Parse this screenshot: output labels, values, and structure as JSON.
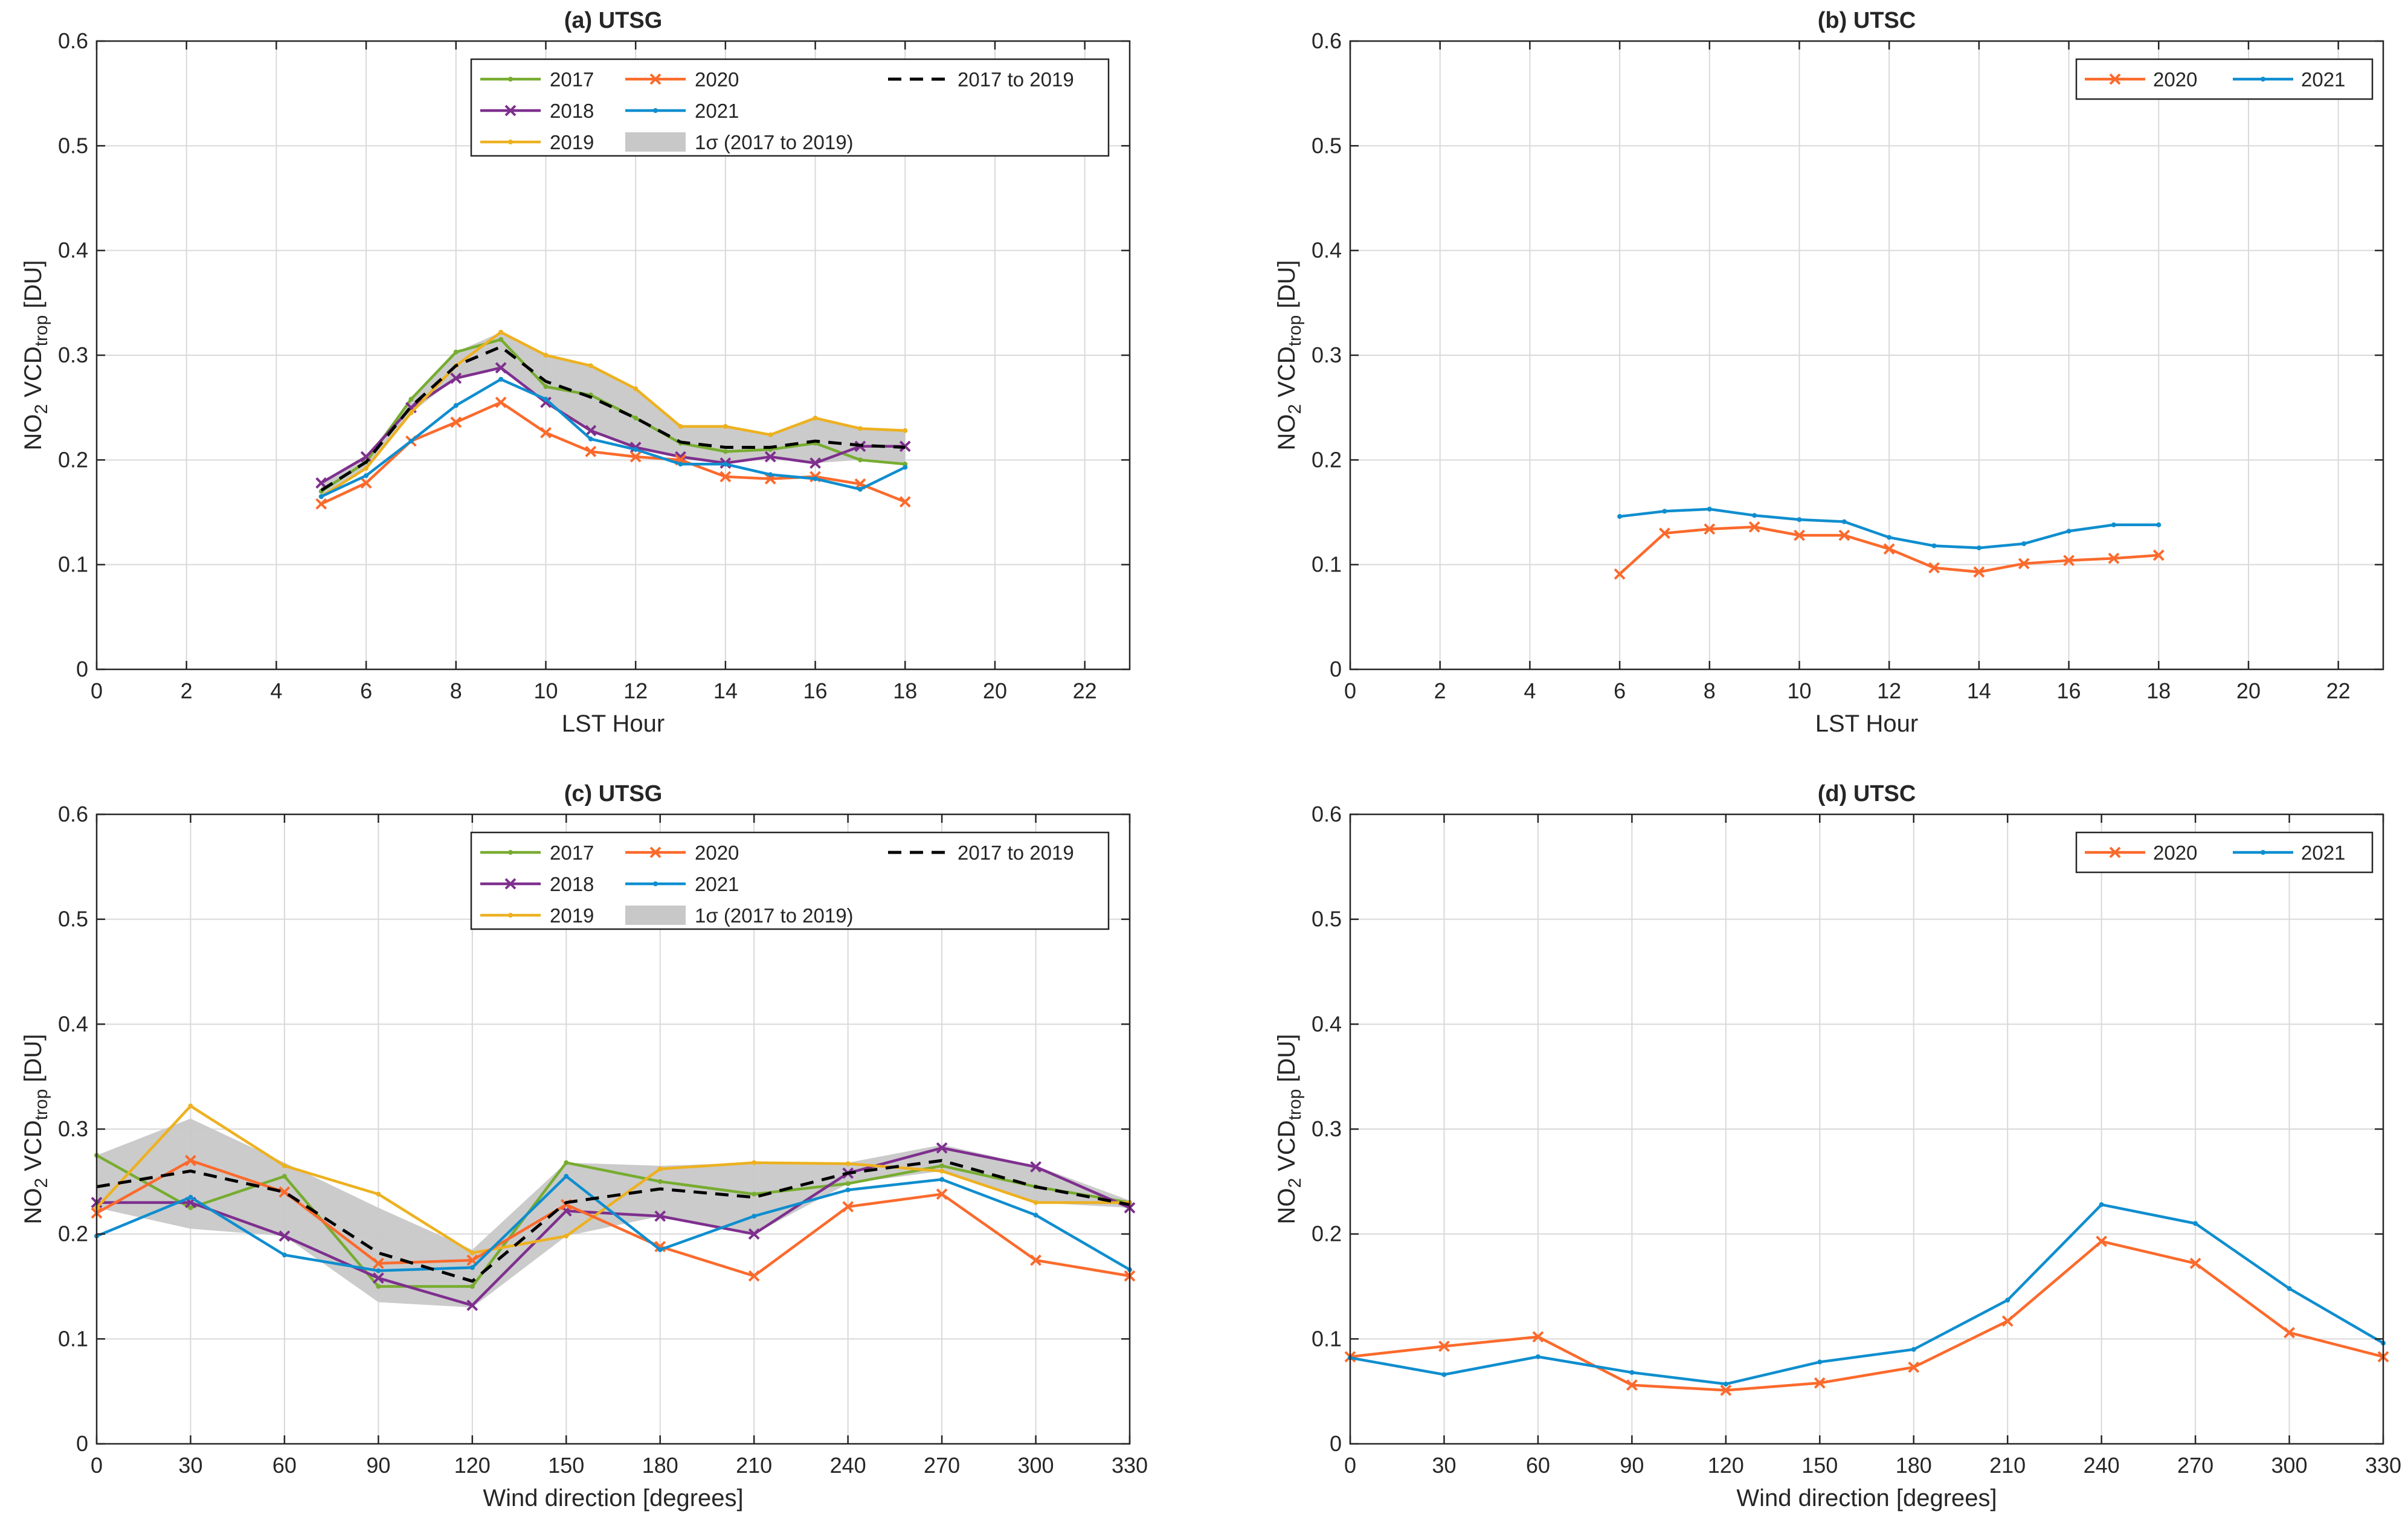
{
  "figure": {
    "ylabel_main": "NO",
    "ylabel_sub2": "2",
    "ylabel_mid": " VCD",
    "ylabel_sub_trop": "trop",
    "ylabel_unit": " [DU]"
  },
  "colors": {
    "2017": "#77ac30",
    "2018": "#7e2f8e",
    "2019": "#edb120",
    "2020": "#fb6a2c",
    "2021": "#0f8ecf",
    "mean": "#000000",
    "band": "#c8c8c8",
    "grid": "#d9d9d9"
  },
  "chart_data": [
    {
      "id": "a",
      "type": "line",
      "title": "(a) UTSG",
      "xlabel": "LST Hour",
      "ylabel": "NO2 VCDtrop [DU]",
      "xlim": [
        0,
        23
      ],
      "ylim": [
        0,
        0.6
      ],
      "xticks": [
        0,
        2,
        4,
        6,
        8,
        10,
        12,
        14,
        16,
        18,
        20,
        22
      ],
      "yticks": [
        0,
        0.1,
        0.2,
        0.3,
        0.4,
        0.5,
        0.6
      ],
      "ytick_labels": [
        "0",
        "0.1",
        "0.2",
        "0.3",
        "0.4",
        "0.5",
        "0.6"
      ],
      "grid": true,
      "legend_position": "top-right",
      "x": [
        5,
        6,
        7,
        8,
        9,
        10,
        11,
        12,
        13,
        14,
        15,
        16,
        17,
        18
      ],
      "series": [
        {
          "name": "2017",
          "marker": "dot",
          "values": [
            0.17,
            0.198,
            0.258,
            0.303,
            0.315,
            0.27,
            0.262,
            0.24,
            0.216,
            0.208,
            0.21,
            0.216,
            0.2,
            0.196
          ]
        },
        {
          "name": "2018",
          "marker": "x",
          "values": [
            0.178,
            0.203,
            0.25,
            0.278,
            0.288,
            0.255,
            0.228,
            0.212,
            0.203,
            0.197,
            0.203,
            0.197,
            0.213,
            0.213
          ]
        },
        {
          "name": "2019",
          "marker": "dot",
          "values": [
            0.165,
            0.192,
            0.245,
            0.29,
            0.322,
            0.3,
            0.29,
            0.268,
            0.232,
            0.232,
            0.224,
            0.24,
            0.23,
            0.228
          ]
        },
        {
          "name": "2020",
          "marker": "x",
          "values": [
            0.158,
            0.178,
            0.218,
            0.236,
            0.255,
            0.226,
            0.208,
            0.203,
            0.2,
            0.184,
            0.182,
            0.184,
            0.177,
            0.16
          ]
        },
        {
          "name": "2021",
          "marker": "dot",
          "values": [
            0.165,
            0.185,
            0.218,
            0.252,
            0.277,
            0.258,
            0.22,
            0.21,
            0.196,
            0.196,
            0.186,
            0.182,
            0.172,
            0.193
          ]
        },
        {
          "name": "2017 to 2019",
          "marker": "none",
          "dashed": true,
          "values": [
            0.171,
            0.198,
            0.251,
            0.29,
            0.308,
            0.275,
            0.26,
            0.24,
            0.217,
            0.212,
            0.212,
            0.218,
            0.214,
            0.212
          ]
        }
      ],
      "band": {
        "name": "1σ (2017 to 2019)",
        "lower": [
          0.165,
          0.192,
          0.245,
          0.278,
          0.288,
          0.255,
          0.228,
          0.212,
          0.203,
          0.197,
          0.203,
          0.197,
          0.2,
          0.196
        ],
        "upper": [
          0.178,
          0.203,
          0.258,
          0.303,
          0.322,
          0.3,
          0.29,
          0.268,
          0.232,
          0.232,
          0.224,
          0.24,
          0.23,
          0.228
        ]
      },
      "legend": [
        "2017",
        "2020",
        "2017 to 2019",
        "2018",
        "2021",
        "2019",
        "1σ (2017 to 2019)"
      ]
    },
    {
      "id": "b",
      "type": "line",
      "title": "(b) UTSC",
      "xlabel": "LST Hour",
      "ylabel": "NO2 VCDtrop [DU]",
      "xlim": [
        0,
        23
      ],
      "ylim": [
        0,
        0.6
      ],
      "xticks": [
        0,
        2,
        4,
        6,
        8,
        10,
        12,
        14,
        16,
        18,
        20,
        22
      ],
      "yticks": [
        0,
        0.1,
        0.2,
        0.3,
        0.4,
        0.5,
        0.6
      ],
      "ytick_labels": [
        "0",
        "0.1",
        "0.2",
        "0.3",
        "0.4",
        "0.5",
        "0.6"
      ],
      "grid": true,
      "legend_position": "top-right",
      "x": [
        6,
        7,
        8,
        9,
        10,
        11,
        12,
        13,
        14,
        15,
        16,
        17,
        18
      ],
      "series": [
        {
          "name": "2020",
          "marker": "x",
          "values": [
            0.091,
            0.13,
            0.134,
            0.136,
            0.128,
            0.128,
            0.115,
            0.097,
            0.093,
            0.101,
            0.104,
            0.106,
            0.109
          ]
        },
        {
          "name": "2021",
          "marker": "dot",
          "values": [
            0.146,
            0.151,
            0.153,
            0.147,
            0.143,
            0.141,
            0.126,
            0.118,
            0.116,
            0.12,
            0.132,
            0.138,
            0.138
          ]
        }
      ],
      "legend": [
        "2020",
        "2021"
      ]
    },
    {
      "id": "c",
      "type": "line",
      "title": "(c) UTSG",
      "xlabel": "Wind direction [degrees]",
      "ylabel": "NO2 VCDtrop [DU]",
      "xlim": [
        0,
        330
      ],
      "ylim": [
        0,
        0.6
      ],
      "xticks": [
        0,
        30,
        60,
        90,
        120,
        150,
        180,
        210,
        240,
        270,
        300,
        330
      ],
      "yticks": [
        0,
        0.1,
        0.2,
        0.3,
        0.4,
        0.5,
        0.6
      ],
      "ytick_labels": [
        "0",
        "0.1",
        "0.2",
        "0.3",
        "0.4",
        "0.5",
        "0.6"
      ],
      "grid": true,
      "legend_position": "top-right",
      "x": [
        0,
        30,
        60,
        90,
        120,
        150,
        180,
        210,
        240,
        270,
        300,
        330
      ],
      "series": [
        {
          "name": "2017",
          "marker": "dot",
          "values": [
            0.275,
            0.225,
            0.255,
            0.15,
            0.15,
            0.268,
            0.25,
            0.238,
            0.248,
            0.265,
            0.245,
            0.23
          ]
        },
        {
          "name": "2018",
          "marker": "x",
          "values": [
            0.23,
            0.23,
            0.198,
            0.158,
            0.132,
            0.222,
            0.217,
            0.2,
            0.258,
            0.282,
            0.264,
            0.225
          ]
        },
        {
          "name": "2019",
          "marker": "dot",
          "values": [
            0.225,
            0.322,
            0.265,
            0.238,
            0.182,
            0.198,
            0.262,
            0.268,
            0.267,
            0.26,
            0.23,
            0.23
          ]
        },
        {
          "name": "2020",
          "marker": "x",
          "values": [
            0.22,
            0.27,
            0.24,
            0.172,
            0.175,
            0.228,
            0.188,
            0.16,
            0.226,
            0.238,
            0.175,
            0.16
          ]
        },
        {
          "name": "2021",
          "marker": "dot",
          "values": [
            0.198,
            0.235,
            0.18,
            0.165,
            0.168,
            0.255,
            0.185,
            0.217,
            0.242,
            0.252,
            0.218,
            0.166
          ]
        },
        {
          "name": "2017 to 2019",
          "marker": "none",
          "dashed": true,
          "values": [
            0.245,
            0.26,
            0.24,
            0.182,
            0.155,
            0.23,
            0.243,
            0.235,
            0.258,
            0.27,
            0.245,
            0.228
          ]
        }
      ],
      "band": {
        "name": "1σ (2017 to 2019)",
        "lower": [
          0.225,
          0.205,
          0.198,
          0.135,
          0.13,
          0.198,
          0.217,
          0.2,
          0.248,
          0.26,
          0.23,
          0.225
        ],
        "upper": [
          0.275,
          0.31,
          0.268,
          0.225,
          0.185,
          0.268,
          0.265,
          0.268,
          0.268,
          0.285,
          0.265,
          0.232
        ]
      },
      "legend": [
        "2017",
        "2020",
        "2017 to 2019",
        "2018",
        "2021",
        "2019",
        "1σ (2017 to 2019)"
      ]
    },
    {
      "id": "d",
      "type": "line",
      "title": "(d) UTSC",
      "xlabel": "Wind direction [degrees]",
      "ylabel": "NO2 VCDtrop [DU]",
      "xlim": [
        0,
        330
      ],
      "ylim": [
        0,
        0.6
      ],
      "xticks": [
        0,
        30,
        60,
        90,
        120,
        150,
        180,
        210,
        240,
        270,
        300,
        330
      ],
      "yticks": [
        0,
        0.1,
        0.2,
        0.3,
        0.4,
        0.5,
        0.6
      ],
      "ytick_labels": [
        "0",
        "0.1",
        "0.2",
        "0.3",
        "0.4",
        "0.5",
        "0.6"
      ],
      "grid": true,
      "legend_position": "top-right",
      "x": [
        0,
        30,
        60,
        90,
        120,
        150,
        180,
        210,
        240,
        270,
        300,
        330
      ],
      "series": [
        {
          "name": "2020",
          "marker": "x",
          "values": [
            0.083,
            0.093,
            0.102,
            0.056,
            0.051,
            0.058,
            0.073,
            0.117,
            0.193,
            0.172,
            0.106,
            0.083
          ]
        },
        {
          "name": "2021",
          "marker": "dot",
          "values": [
            0.082,
            0.066,
            0.083,
            0.068,
            0.057,
            0.078,
            0.09,
            0.137,
            0.228,
            0.21,
            0.148,
            0.096
          ]
        }
      ],
      "legend": [
        "2020",
        "2021"
      ]
    }
  ]
}
